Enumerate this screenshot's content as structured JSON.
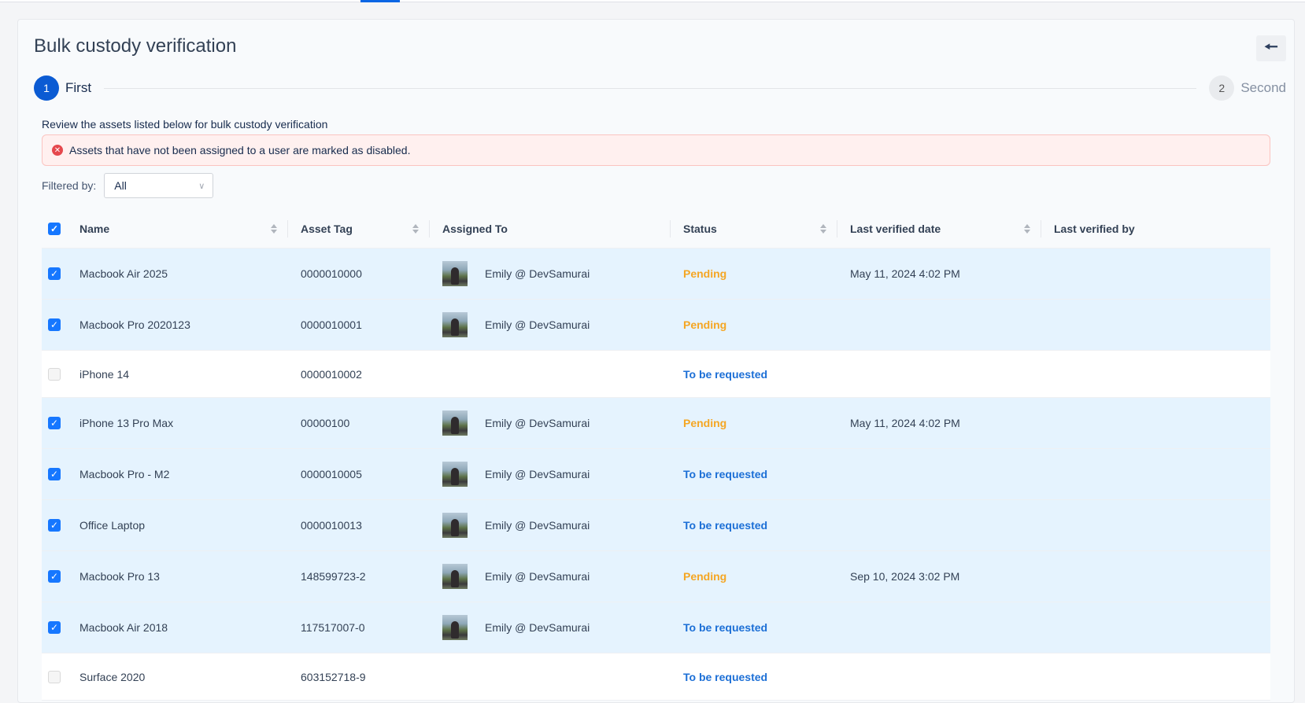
{
  "page": {
    "title": "Bulk custody verification",
    "back_icon": "arrow-left-icon"
  },
  "stepper": {
    "steps": [
      {
        "number": "1",
        "label": "First",
        "active": true
      },
      {
        "number": "2",
        "label": "Second",
        "active": false
      }
    ]
  },
  "description": "Review the assets listed below for bulk custody verification",
  "alert": {
    "icon": "error-circle-icon",
    "text": "Assets that have not been assigned to a user are marked as disabled.",
    "color": "#e5484d"
  },
  "filter": {
    "label": "Filtered by:",
    "value": "All"
  },
  "table": {
    "columns": [
      "Name",
      "Asset Tag",
      "Assigned To",
      "Status",
      "Last verified date",
      "Last verified by"
    ],
    "header_checked": true,
    "rows": [
      {
        "checked": true,
        "name": "Macbook Air 2025",
        "tag": "0000010000",
        "assigned": "Emily @ DevSamurai",
        "status": "Pending",
        "date": "May 11, 2024 4:02 PM",
        "by": ""
      },
      {
        "checked": true,
        "name": "Macbook Pro 2020123",
        "tag": "0000010001",
        "assigned": "Emily @ DevSamurai",
        "status": "Pending",
        "date": "",
        "by": ""
      },
      {
        "checked": false,
        "name": "iPhone 14",
        "tag": "0000010002",
        "assigned": "",
        "status": "To be requested",
        "date": "",
        "by": ""
      },
      {
        "checked": true,
        "name": "iPhone 13 Pro Max",
        "tag": "00000100",
        "assigned": "Emily @ DevSamurai",
        "status": "Pending",
        "date": "May 11, 2024 4:02 PM",
        "by": ""
      },
      {
        "checked": true,
        "name": "Macbook Pro - M2",
        "tag": "0000010005",
        "assigned": "Emily @ DevSamurai",
        "status": "To be requested",
        "date": "",
        "by": ""
      },
      {
        "checked": true,
        "name": "Office Laptop",
        "tag": "0000010013",
        "assigned": "Emily @ DevSamurai",
        "status": "To be requested",
        "date": "",
        "by": ""
      },
      {
        "checked": true,
        "name": "Macbook Pro 13",
        "tag": "148599723-2",
        "assigned": "Emily @ DevSamurai",
        "status": "Pending",
        "date": "Sep 10, 2024 3:02 PM",
        "by": ""
      },
      {
        "checked": true,
        "name": "Macbook Air 2018",
        "tag": "117517007-0",
        "assigned": "Emily @ DevSamurai",
        "status": "To be requested",
        "date": "",
        "by": ""
      },
      {
        "checked": false,
        "name": "Surface 2020",
        "tag": "603152718-9",
        "assigned": "",
        "status": "To be requested",
        "date": "",
        "by": ""
      }
    ]
  },
  "colors": {
    "accent": "#0b5bd3",
    "pending": "#f5a623",
    "to_be_requested": "#1c6fd6",
    "selected_row": "#e5f3fe"
  }
}
